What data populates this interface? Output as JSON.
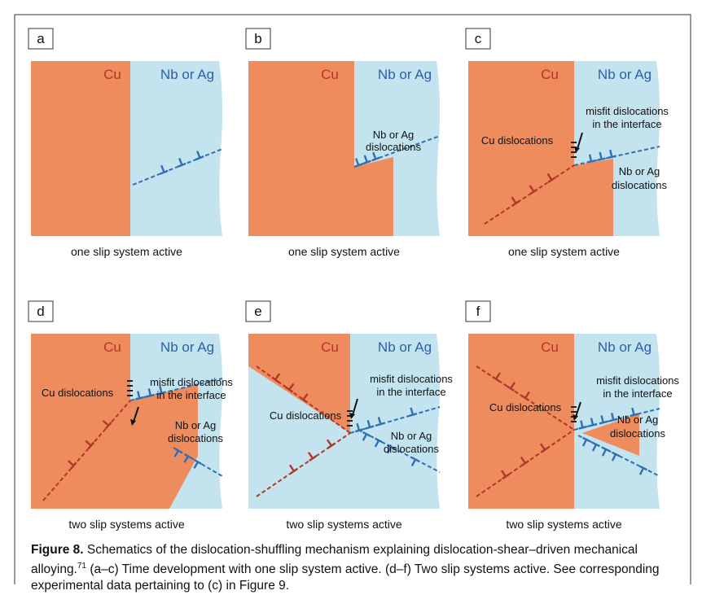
{
  "panels": [
    {
      "label": "a",
      "materials": [
        "Cu",
        "Nb or Ag"
      ],
      "annotations": [],
      "caption": "one slip system active"
    },
    {
      "label": "b",
      "materials": [
        "Cu",
        "Nb or Ag"
      ],
      "annotations": [
        [
          "Nb or Ag",
          "dislocations"
        ]
      ],
      "caption": "one slip system active"
    },
    {
      "label": "c",
      "materials": [
        "Cu",
        "Nb or Ag"
      ],
      "annotations": [
        [
          "misfit dislocations",
          "in the interface"
        ],
        [
          "Cu dislocations"
        ],
        [
          "Nb or Ag",
          "dislocations"
        ]
      ],
      "caption": "one slip system active"
    },
    {
      "label": "d",
      "materials": [
        "Cu",
        "Nb or Ag"
      ],
      "annotations": [
        [
          "misfit dislocations",
          "in the interface"
        ],
        [
          "Cu dislocations"
        ],
        [
          "Nb or Ag",
          "dislocations"
        ]
      ],
      "caption": "two slip systems active"
    },
    {
      "label": "e",
      "materials": [
        "Cu",
        "Nb or Ag"
      ],
      "annotations": [
        [
          "misfit dislocations",
          "in the interface"
        ],
        [
          "Cu dislocations"
        ],
        [
          "Nb or Ag",
          "dislocations"
        ]
      ],
      "caption": "two slip systems active"
    },
    {
      "label": "f",
      "materials": [
        "Cu",
        "Nb or Ag"
      ],
      "annotations": [
        [
          "misfit dislocations",
          "in the interface"
        ],
        [
          "Cu dislocations"
        ],
        [
          "Nb or Ag",
          "dislocations"
        ]
      ],
      "caption": "two slip systems active"
    }
  ],
  "caption": {
    "label": "Figure 8.",
    "text": "Schematics of the dislocation-shuffling mechanism explaining dislocation-shear–driven mechanical alloying.",
    "ref": "71",
    "text_after": "(a–c) Time development with one slip system active. (d–f) Two slip systems active. See corresponding experimental data pertaining to (c) in Figure 9."
  }
}
